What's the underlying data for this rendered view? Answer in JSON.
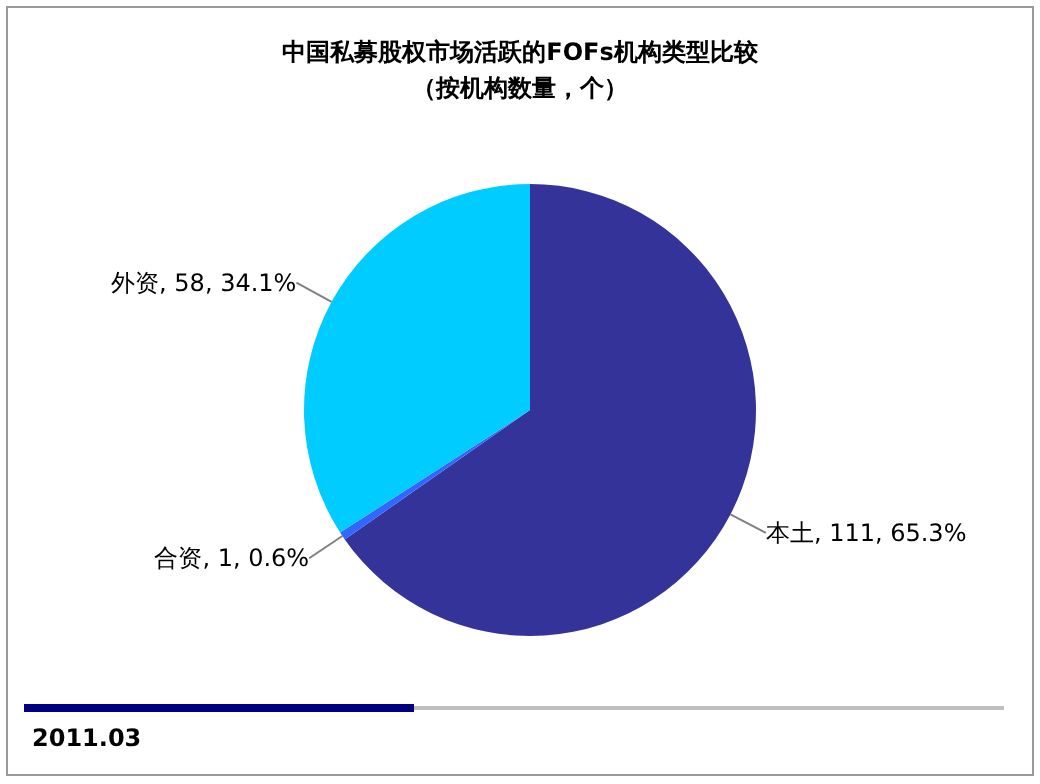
{
  "chart_data": {
    "type": "pie",
    "title": "中国私募股权市场活跃的FOFs机构类型比较",
    "subtitle": "（按机构数量，个）",
    "categories": [
      "本土",
      "合资",
      "外资"
    ],
    "values": [
      111,
      1,
      58
    ],
    "value_labels": [
      "111, 65.3%",
      "1, 0.6%",
      "58, 34.1%"
    ],
    "colors": [
      "#333399",
      "#3366ff",
      "#00ccff"
    ],
    "annotations": [
      "2011.03"
    ]
  }
}
